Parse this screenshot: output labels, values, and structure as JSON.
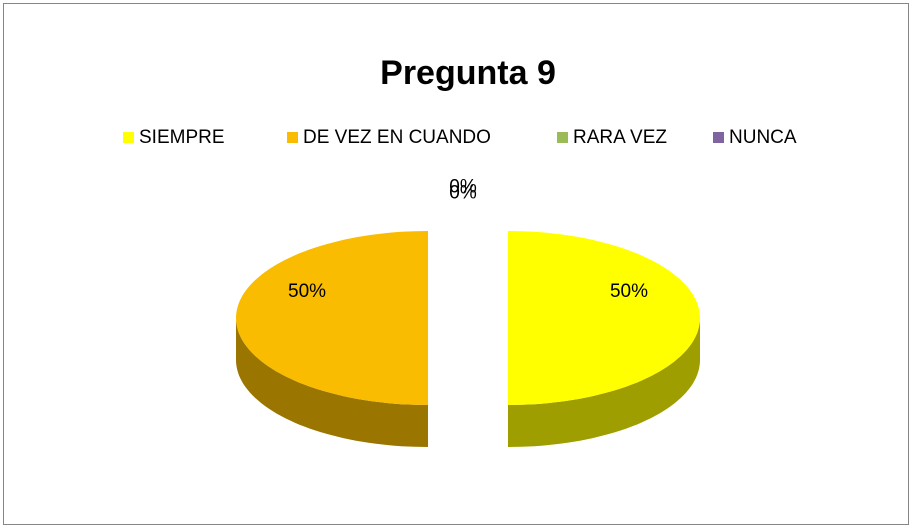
{
  "chart_data": {
    "type": "pie3d",
    "title": "Pregunta 9",
    "categories": [
      "SIEMPRE",
      "DE VEZ EN CUANDO",
      "RARA VEZ",
      "NUNCA"
    ],
    "values": [
      50,
      50,
      0,
      0
    ],
    "value_labels": [
      "50%",
      "50%",
      "0%",
      "0%"
    ],
    "colors": [
      "#ffff00",
      "#f9bc00",
      "#9bbb59",
      "#8064a2"
    ],
    "legend": "top"
  }
}
